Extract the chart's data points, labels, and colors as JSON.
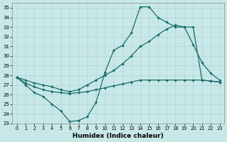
{
  "xlabel": "Humidex (Indice chaleur)",
  "background_color": "#c8e8e8",
  "grid_color": "#aed4d4",
  "line_color": "#1a6b6b",
  "xlim": [
    -0.5,
    23.5
  ],
  "ylim": [
    23,
    35.5
  ],
  "xticks": [
    0,
    1,
    2,
    3,
    4,
    5,
    6,
    7,
    8,
    9,
    10,
    11,
    12,
    13,
    14,
    15,
    16,
    17,
    18,
    19,
    20,
    21,
    22,
    23
  ],
  "yticks": [
    23,
    24,
    25,
    26,
    27,
    28,
    29,
    30,
    31,
    32,
    33,
    34,
    35
  ],
  "line1_x": [
    0,
    1,
    2,
    3,
    4,
    5,
    6,
    7,
    8,
    9,
    10,
    11,
    12,
    13,
    14,
    15,
    16,
    17,
    18,
    19,
    20,
    21,
    22,
    23
  ],
  "line1_y": [
    27.8,
    27.0,
    26.2,
    25.8,
    25.0,
    24.3,
    23.2,
    23.3,
    23.7,
    25.2,
    28.3,
    30.6,
    31.1,
    32.4,
    35.1,
    35.1,
    34.0,
    33.5,
    33.0,
    33.0,
    31.2,
    29.3,
    28.2,
    27.5
  ],
  "line2_x": [
    0,
    1,
    2,
    3,
    4,
    5,
    6,
    7,
    8,
    9,
    10,
    11,
    12,
    13,
    14,
    15,
    16,
    17,
    18,
    19,
    20,
    21,
    22,
    23
  ],
  "line2_y": [
    27.8,
    27.5,
    27.2,
    27.0,
    26.8,
    26.5,
    26.3,
    26.5,
    27.0,
    27.5,
    28.0,
    28.5,
    29.2,
    30.0,
    31.0,
    31.5,
    32.2,
    32.8,
    33.2,
    33.0,
    33.0,
    27.5,
    27.4,
    27.3
  ],
  "line3_x": [
    0,
    1,
    2,
    3,
    4,
    5,
    6,
    7,
    8,
    9,
    10,
    11,
    12,
    13,
    14,
    15,
    16,
    17,
    18,
    19,
    20,
    21,
    22,
    23
  ],
  "line3_y": [
    27.8,
    27.2,
    26.8,
    26.5,
    26.3,
    26.2,
    26.1,
    26.2,
    26.3,
    26.5,
    26.7,
    26.9,
    27.1,
    27.3,
    27.5,
    27.5,
    27.5,
    27.5,
    27.5,
    27.5,
    27.5,
    27.5,
    27.4,
    27.3
  ]
}
